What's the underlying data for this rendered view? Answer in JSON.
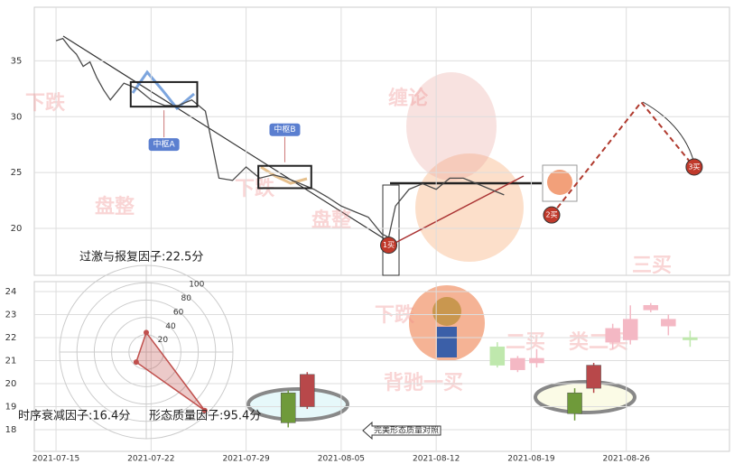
{
  "chart_data": [
    {
      "type": "line",
      "xlim": [
        -1.6,
        49.6
      ],
      "xticks": [
        {
          "value": 0,
          "label": "2021-07-15"
        },
        {
          "value": 7,
          "label": "2021-07-22"
        },
        {
          "value": 14,
          "label": "2021-07-29"
        },
        {
          "value": 21,
          "label": "2021-08-05"
        },
        {
          "value": 28,
          "label": "2021-08-12"
        },
        {
          "value": 35,
          "label": "2021-08-19"
        },
        {
          "value": 42,
          "label": "2021-08-26"
        }
      ],
      "ylim": [
        15.8,
        39.8
      ],
      "yticks": [
        20,
        25,
        30,
        35
      ],
      "grid": true,
      "series": [
        {
          "color": "#4a4a4a",
          "x": [
            0,
            0.5,
            1,
            1.5,
            2,
            2.5,
            3,
            3.5,
            4,
            5,
            6,
            7,
            8,
            9,
            10,
            11,
            11.5,
            12,
            13,
            14,
            15,
            16,
            17,
            18,
            19,
            20,
            21,
            22,
            23,
            24,
            24.5,
            25,
            26,
            27,
            28,
            29,
            30,
            31,
            32,
            33
          ],
          "values": [
            36.8,
            37.0,
            36.2,
            35.6,
            34.5,
            34.9,
            33.5,
            32.4,
            31.5,
            33.0,
            32.5,
            31.5,
            31.0,
            31.0,
            31.5,
            30.5,
            27.5,
            24.5,
            24.3,
            25.5,
            24.5,
            24.8,
            24.5,
            24.0,
            23.5,
            22.8,
            22.0,
            21.5,
            21.0,
            19.5,
            19.2,
            22.0,
            23.5,
            24.0,
            23.5,
            24.5,
            24.5,
            24.0,
            23.5,
            23.0
          ]
        }
      ],
      "zones": [
        {
          "label": "中枢A",
          "x": [
            5.5,
            10.4
          ],
          "y": [
            30.9,
            33.1
          ]
        },
        {
          "label": "中枢B",
          "x": [
            14.9,
            18.8
          ],
          "y": [
            23.6,
            25.6
          ]
        }
      ],
      "signals": [
        {
          "label": "1买",
          "x": 24.5,
          "y": 18.5
        },
        {
          "label": "2买",
          "x": 36.5,
          "y": 21.2
        },
        {
          "label": "3买",
          "x": 47,
          "y": 25.5
        }
      ],
      "projection": {
        "color": "#b03a2e",
        "x": [
          36.5,
          43.1,
          47
        ],
        "values": [
          21.2,
          31.3,
          25.5
        ]
      }
    },
    {
      "type": "candlestick",
      "ylim": [
        17.06,
        24.43
      ],
      "yticks": [
        18,
        19,
        20,
        21,
        22,
        23,
        24
      ],
      "grid": true,
      "up_color": "#b8484a",
      "down_color": "#6f9a3a",
      "faded_up_color": "#f4b8c4",
      "faded_down_color": "#bfe8ad",
      "candles": [
        {
          "x": 17.1,
          "open": 19.6,
          "high": 19.7,
          "low": 18.1,
          "close": 18.3,
          "faded": false
        },
        {
          "x": 18.5,
          "open": 19.0,
          "high": 20.5,
          "low": 18.9,
          "close": 20.4,
          "faded": false
        },
        {
          "x": 38.2,
          "open": 19.6,
          "high": 19.8,
          "low": 18.4,
          "close": 18.7,
          "faded": false
        },
        {
          "x": 39.6,
          "open": 19.8,
          "high": 20.9,
          "low": 19.6,
          "close": 20.8,
          "faded": false
        },
        {
          "x": 32.5,
          "open": 21.6,
          "high": 21.8,
          "low": 20.7,
          "close": 20.8,
          "faded": true
        },
        {
          "x": 34.0,
          "open": 20.6,
          "high": 21.2,
          "low": 20.5,
          "close": 21.1,
          "faded": true
        },
        {
          "x": 35.4,
          "open": 20.9,
          "high": 21.5,
          "low": 20.7,
          "close": 21.1,
          "faded": true
        },
        {
          "x": 41.0,
          "open": 21.8,
          "high": 22.6,
          "low": 21.5,
          "close": 22.4,
          "faded": true
        },
        {
          "x": 42.3,
          "open": 21.9,
          "high": 23.4,
          "low": 21.7,
          "close": 22.8,
          "faded": true
        },
        {
          "x": 43.8,
          "open": 23.2,
          "high": 23.5,
          "low": 23.1,
          "close": 23.4,
          "faded": true
        },
        {
          "x": 45.1,
          "open": 22.5,
          "high": 23.0,
          "low": 22.1,
          "close": 22.8,
          "faded": true
        },
        {
          "x": 46.7,
          "open": 22.0,
          "high": 22.3,
          "low": 21.6,
          "close": 21.9,
          "faded": true
        }
      ],
      "legend_button": "完美形态质量对照"
    },
    {
      "type": "radar",
      "rlim": [
        0,
        100
      ],
      "rticks": [
        20,
        40,
        60,
        80,
        100
      ],
      "color": "#c0504d",
      "axes": [
        {
          "label": "过激与报复因子:22.5分",
          "value": 22.5
        },
        {
          "label": "时序衰减因子:16.4分",
          "value": 16.4
        },
        {
          "label": "形态质量因子:95.4分",
          "value": 95.4
        }
      ]
    }
  ],
  "watermarks": [
    "缠论",
    "下跌",
    "盘整",
    "下跌",
    "盘整",
    "三买",
    "类二买",
    "二买",
    "下跌",
    "背驰一买"
  ]
}
